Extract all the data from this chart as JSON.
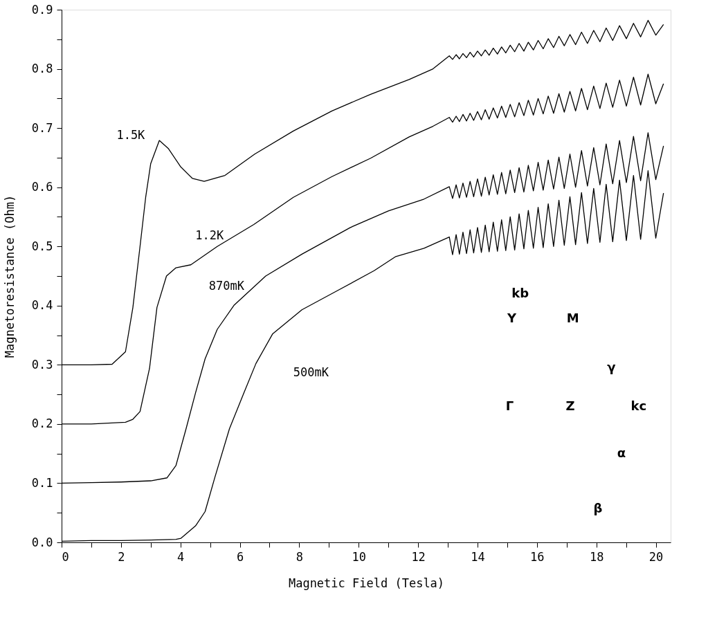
{
  "chart_data": {
    "type": "line",
    "xlabel": "Magnetic Field (Tesla)",
    "ylabel": "Magnetoresistance (Ohm)",
    "xlim": [
      0,
      20.5
    ],
    "ylim": [
      0,
      0.9
    ],
    "xticks": [
      0,
      {
        "value": 1,
        "label": null
      },
      2,
      {
        "value": 3,
        "label": null
      },
      4,
      {
        "value": 5,
        "label": null
      },
      6,
      {
        "value": 7,
        "label": null
      },
      8,
      {
        "value": 9,
        "label": null
      },
      10,
      {
        "value": 11,
        "label": null
      },
      12,
      {
        "value": 13,
        "label": null
      },
      14,
      {
        "value": 15,
        "label": null
      },
      16,
      {
        "value": 17,
        "label": null
      },
      18,
      {
        "value": 19,
        "label": null
      },
      20
    ],
    "yticks": [
      {
        "value": 0,
        "label": "0.0"
      },
      {
        "value": 0.05,
        "label": null
      },
      {
        "value": 0.1,
        "label": "0.1"
      },
      {
        "value": 0.15,
        "label": null
      },
      {
        "value": 0.2,
        "label": "0.2"
      },
      {
        "value": 0.25,
        "label": null
      },
      {
        "value": 0.3,
        "label": "0.3"
      },
      {
        "value": 0.35,
        "label": null
      },
      {
        "value": 0.4,
        "label": "0.4"
      },
      {
        "value": 0.45,
        "label": null
      },
      {
        "value": 0.5,
        "label": "0.5"
      },
      {
        "value": 0.55,
        "label": null
      },
      {
        "value": 0.6,
        "label": "0.6"
      },
      {
        "value": 0.65,
        "label": null
      },
      {
        "value": 0.7,
        "label": "0.7"
      },
      {
        "value": 0.75,
        "label": null
      },
      {
        "value": 0.8,
        "label": "0.8"
      },
      {
        "value": 0.85,
        "label": null
      },
      {
        "value": 0.9,
        "label": "0.9"
      }
    ],
    "grid": false,
    "legend": false,
    "marker": "none",
    "line_style": "solid",
    "annotations": [
      "kb",
      "Y",
      "M",
      "Γ",
      "Z",
      "kc",
      "γ",
      "α",
      "β"
    ],
    "series": [
      {
        "name": "1.5K",
        "color": "#000000",
        "x": [
          0,
          1,
          1.7,
          2.15,
          2.4,
          2.64,
          2.83,
          3.0,
          3.29,
          3.6,
          4.0,
          4.4,
          4.8,
          5.5,
          6.5,
          7.8,
          9.1,
          10.4,
          11.7,
          12.5,
          13.05,
          13.16,
          13.28,
          13.39,
          13.51,
          13.63,
          13.75,
          13.87,
          14.0,
          14.13,
          14.26,
          14.39,
          14.53,
          14.67,
          14.81,
          14.95,
          15.1,
          15.25,
          15.4,
          15.56,
          15.71,
          15.88,
          16.04,
          16.21,
          16.38,
          16.56,
          16.74,
          16.92,
          17.11,
          17.3,
          17.5,
          17.7,
          17.91,
          18.12,
          18.33,
          18.55,
          18.78,
          19.01,
          19.25,
          19.49,
          19.74,
          20.0,
          20.26
        ],
        "values": [
          0.3,
          0.3,
          0.301,
          0.322,
          0.397,
          0.5,
          0.583,
          0.64,
          0.679,
          0.665,
          0.635,
          0.615,
          0.61,
          0.62,
          0.656,
          0.695,
          0.729,
          0.757,
          0.782,
          0.8,
          0.822,
          0.816,
          0.824,
          0.817,
          0.826,
          0.819,
          0.828,
          0.82,
          0.83,
          0.822,
          0.832,
          0.823,
          0.835,
          0.825,
          0.837,
          0.827,
          0.84,
          0.829,
          0.843,
          0.83,
          0.845,
          0.832,
          0.848,
          0.834,
          0.851,
          0.836,
          0.855,
          0.839,
          0.858,
          0.841,
          0.862,
          0.843,
          0.865,
          0.846,
          0.869,
          0.848,
          0.873,
          0.851,
          0.877,
          0.854,
          0.882,
          0.857,
          0.875
        ]
      },
      {
        "name": "1.2K",
        "color": "#000000",
        "x": [
          0,
          1,
          2.15,
          2.4,
          2.64,
          2.96,
          3.21,
          3.53,
          3.85,
          4.35,
          5.24,
          6.47,
          7.8,
          9.1,
          10.4,
          11.7,
          12.5,
          13.05,
          13.16,
          13.28,
          13.39,
          13.51,
          13.63,
          13.75,
          13.87,
          14.0,
          14.13,
          14.26,
          14.39,
          14.53,
          14.67,
          14.81,
          14.95,
          15.1,
          15.25,
          15.4,
          15.56,
          15.71,
          15.88,
          16.04,
          16.21,
          16.38,
          16.56,
          16.74,
          16.92,
          17.11,
          17.3,
          17.5,
          17.7,
          17.91,
          18.12,
          18.33,
          18.55,
          18.78,
          19.01,
          19.25,
          19.49,
          19.74,
          20.0,
          20.26
        ],
        "values": [
          0.2,
          0.2,
          0.203,
          0.208,
          0.221,
          0.294,
          0.397,
          0.45,
          0.464,
          0.469,
          0.5,
          0.537,
          0.583,
          0.618,
          0.649,
          0.685,
          0.703,
          0.718,
          0.71,
          0.72,
          0.711,
          0.723,
          0.712,
          0.725,
          0.713,
          0.728,
          0.714,
          0.731,
          0.715,
          0.734,
          0.717,
          0.737,
          0.718,
          0.74,
          0.719,
          0.743,
          0.721,
          0.747,
          0.722,
          0.75,
          0.724,
          0.754,
          0.725,
          0.758,
          0.727,
          0.762,
          0.729,
          0.767,
          0.731,
          0.771,
          0.733,
          0.776,
          0.735,
          0.781,
          0.737,
          0.786,
          0.739,
          0.791,
          0.741,
          0.775
        ]
      },
      {
        "name": "870mK",
        "color": "#000000",
        "x": [
          0,
          1,
          2,
          3,
          3.55,
          3.85,
          4.19,
          4.51,
          4.83,
          5.24,
          5.81,
          6.87,
          8.09,
          9.72,
          11.0,
          12.2,
          13.05,
          13.16,
          13.28,
          13.39,
          13.51,
          13.63,
          13.75,
          13.87,
          14.0,
          14.13,
          14.26,
          14.39,
          14.53,
          14.67,
          14.81,
          14.95,
          15.1,
          15.25,
          15.4,
          15.56,
          15.71,
          15.88,
          16.04,
          16.21,
          16.38,
          16.56,
          16.74,
          16.92,
          17.11,
          17.3,
          17.5,
          17.7,
          17.91,
          18.12,
          18.33,
          18.55,
          18.78,
          19.01,
          19.25,
          19.49,
          19.74,
          20.0,
          20.26
        ],
        "values": [
          0.1,
          0.101,
          0.102,
          0.104,
          0.109,
          0.13,
          0.192,
          0.253,
          0.31,
          0.36,
          0.401,
          0.45,
          0.487,
          0.532,
          0.56,
          0.58,
          0.601,
          0.581,
          0.604,
          0.582,
          0.607,
          0.583,
          0.61,
          0.584,
          0.614,
          0.585,
          0.617,
          0.587,
          0.621,
          0.588,
          0.625,
          0.589,
          0.629,
          0.591,
          0.633,
          0.592,
          0.637,
          0.594,
          0.642,
          0.595,
          0.646,
          0.597,
          0.651,
          0.598,
          0.656,
          0.6,
          0.662,
          0.602,
          0.667,
          0.604,
          0.673,
          0.606,
          0.679,
          0.608,
          0.686,
          0.611,
          0.692,
          0.613,
          0.67
        ]
      },
      {
        "name": "500mK",
        "color": "#000000",
        "x": [
          0,
          1,
          2,
          3,
          3.85,
          4.02,
          4.51,
          4.83,
          5.16,
          5.65,
          6.14,
          6.54,
          7.1,
          8.09,
          9.31,
          10.52,
          11.25,
          12.2,
          13.05,
          13.16,
          13.28,
          13.39,
          13.51,
          13.63,
          13.75,
          13.87,
          14.0,
          14.13,
          14.26,
          14.39,
          14.53,
          14.67,
          14.81,
          14.95,
          15.1,
          15.25,
          15.4,
          15.56,
          15.71,
          15.88,
          16.04,
          16.21,
          16.38,
          16.56,
          16.74,
          16.92,
          17.11,
          17.3,
          17.5,
          17.7,
          17.91,
          18.12,
          18.33,
          18.55,
          18.78,
          19.01,
          19.25,
          19.49,
          19.74,
          20.0,
          20.26
        ],
        "values": [
          0.002,
          0.003,
          0.003,
          0.004,
          0.005,
          0.007,
          0.028,
          0.052,
          0.11,
          0.192,
          0.253,
          0.302,
          0.352,
          0.393,
          0.426,
          0.459,
          0.483,
          0.497,
          0.516,
          0.486,
          0.52,
          0.487,
          0.524,
          0.488,
          0.528,
          0.489,
          0.532,
          0.49,
          0.536,
          0.491,
          0.541,
          0.492,
          0.545,
          0.493,
          0.55,
          0.494,
          0.555,
          0.496,
          0.561,
          0.497,
          0.566,
          0.498,
          0.572,
          0.5,
          0.578,
          0.502,
          0.584,
          0.503,
          0.591,
          0.505,
          0.598,
          0.507,
          0.605,
          0.508,
          0.612,
          0.51,
          0.62,
          0.512,
          0.628,
          0.514,
          0.59
        ]
      }
    ]
  }
}
